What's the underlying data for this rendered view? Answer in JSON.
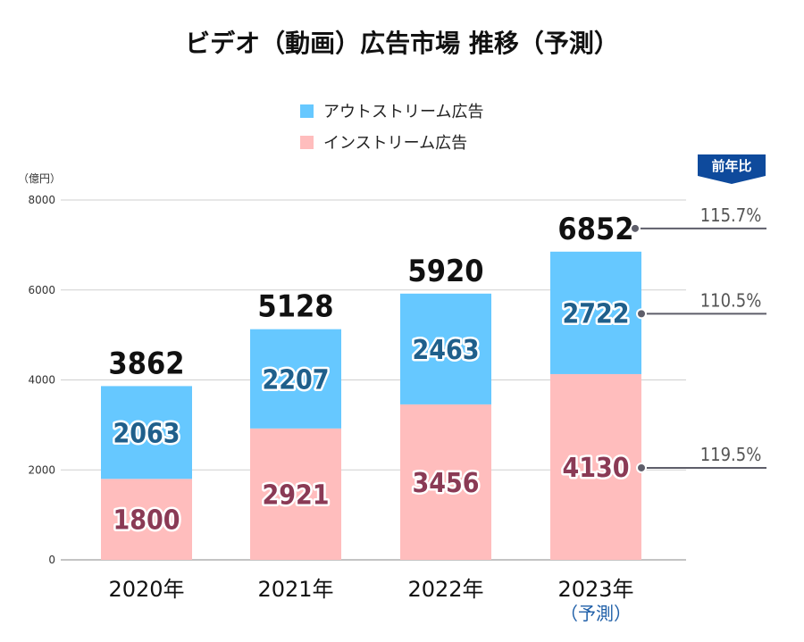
{
  "chart_data": {
    "type": "bar",
    "stacked": true,
    "title": "ビデオ（動画）広告市場 推移（予測）",
    "unit_label": "（億円）",
    "categories": [
      "2020年",
      "2021年",
      "2022年",
      "2023年"
    ],
    "category_note": {
      "index": 3,
      "text": "（予測）"
    },
    "ylim": [
      0,
      8000
    ],
    "yticks": [
      0,
      2000,
      4000,
      6000,
      8000
    ],
    "grid": true,
    "legend_position": "top-center",
    "series": [
      {
        "name": "インストリーム広告",
        "color": "#ffbdbd",
        "label_color": "#8a3a55",
        "values": [
          1800,
          2921,
          3456,
          4130
        ]
      },
      {
        "name": "アウトストリーム広告",
        "color": "#66c8ff",
        "label_color": "#1f5f8b",
        "values": [
          2063,
          2207,
          2463,
          2722
        ]
      }
    ],
    "totals": [
      3862,
      5128,
      5920,
      6852
    ],
    "yoy": {
      "badge": "前年比",
      "items": [
        {
          "target": "total",
          "text": "115.7%"
        },
        {
          "target": "アウトストリーム広告",
          "text": "110.5%"
        },
        {
          "target": "インストリーム広告",
          "text": "119.5%"
        }
      ]
    }
  }
}
